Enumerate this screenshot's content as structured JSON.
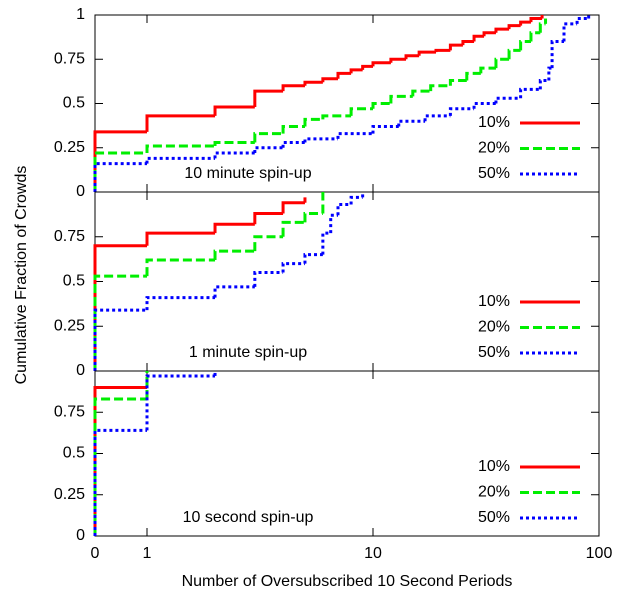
{
  "chart_data": [
    {
      "type": "line",
      "annotation": "10 minute spin-up",
      "ylim": [
        0,
        1
      ],
      "yticks": [
        0,
        0.25,
        0.5,
        0.75,
        1
      ],
      "xscale": "log",
      "xlim": [
        0,
        100
      ],
      "legend": "right",
      "series": [
        {
          "name": "10%",
          "color": "#ff0000",
          "dash": "solid",
          "x": [
            0,
            0,
            1,
            2,
            3,
            4,
            5,
            6,
            7,
            8,
            9,
            10,
            12,
            14,
            16,
            19,
            22,
            25,
            28,
            31,
            35,
            40,
            45,
            50,
            56
          ],
          "values": [
            0,
            0.34,
            0.43,
            0.48,
            0.57,
            0.6,
            0.62,
            0.64,
            0.67,
            0.69,
            0.71,
            0.73,
            0.75,
            0.77,
            0.79,
            0.8,
            0.83,
            0.85,
            0.88,
            0.9,
            0.92,
            0.94,
            0.96,
            0.98,
            1
          ]
        },
        {
          "name": "20%",
          "color": "#00ee00",
          "dash": "dashed",
          "x": [
            0,
            0,
            1,
            2,
            3,
            4,
            5,
            6,
            8,
            10,
            12,
            15,
            18,
            22,
            26,
            30,
            35,
            40,
            45,
            50,
            55,
            58
          ],
          "values": [
            0,
            0.22,
            0.26,
            0.28,
            0.33,
            0.37,
            0.41,
            0.43,
            0.47,
            0.5,
            0.54,
            0.57,
            0.6,
            0.63,
            0.67,
            0.7,
            0.75,
            0.8,
            0.85,
            0.9,
            0.95,
            0.98
          ]
        },
        {
          "name": "50%",
          "color": "#0000ff",
          "dash": "dotted",
          "x": [
            0,
            0,
            1,
            2,
            3,
            4,
            5,
            7,
            10,
            13,
            17,
            22,
            28,
            35,
            45,
            55,
            60,
            62,
            70,
            80,
            90
          ],
          "values": [
            0,
            0.16,
            0.19,
            0.22,
            0.25,
            0.28,
            0.3,
            0.33,
            0.37,
            0.4,
            0.43,
            0.47,
            0.5,
            0.53,
            0.58,
            0.63,
            0.7,
            0.85,
            0.95,
            0.98,
            1
          ]
        }
      ]
    },
    {
      "type": "line",
      "annotation": "1 minute spin-up",
      "ylabel": "Cumulative Fraction of Crowds",
      "ylim": [
        0,
        1
      ],
      "yticks": [
        0,
        0.25,
        0.5,
        0.75
      ],
      "xscale": "log",
      "xlim": [
        0,
        100
      ],
      "legend": "right",
      "series": [
        {
          "name": "10%",
          "color": "#ff0000",
          "dash": "solid",
          "x": [
            0,
            0,
            1,
            2,
            3,
            4,
            5
          ],
          "values": [
            0,
            0.7,
            0.77,
            0.82,
            0.88,
            0.94,
            0.97
          ]
        },
        {
          "name": "20%",
          "color": "#00ee00",
          "dash": "dashed",
          "x": [
            0,
            0,
            1,
            2,
            3,
            4,
            5,
            6
          ],
          "values": [
            0,
            0.53,
            0.62,
            0.67,
            0.75,
            0.83,
            0.88,
            1
          ]
        },
        {
          "name": "50%",
          "color": "#0000ff",
          "dash": "dotted",
          "x": [
            0,
            0,
            1,
            2,
            3,
            4,
            5,
            6,
            6.5,
            7,
            8,
            9
          ],
          "values": [
            0,
            0.34,
            0.41,
            0.47,
            0.55,
            0.6,
            0.65,
            0.77,
            0.87,
            0.93,
            0.97,
            1
          ]
        }
      ]
    },
    {
      "type": "line",
      "annotation": "10 second spin-up",
      "xlabel": "Number of Oversubscribed 10 Second Periods",
      "ylim": [
        0,
        1
      ],
      "yticks": [
        0,
        0.25,
        0.5,
        0.75
      ],
      "xscale": "log",
      "xlim": [
        0,
        100
      ],
      "xticks": [
        0,
        1,
        10,
        100
      ],
      "legend": "right",
      "series": [
        {
          "name": "10%",
          "color": "#ff0000",
          "dash": "solid",
          "x": [
            0,
            0,
            1
          ],
          "values": [
            0,
            0.9,
            0.9
          ]
        },
        {
          "name": "20%",
          "color": "#00ee00",
          "dash": "dashed",
          "x": [
            0,
            0,
            1
          ],
          "values": [
            0,
            0.83,
            1
          ]
        },
        {
          "name": "50%",
          "color": "#0000ff",
          "dash": "dotted",
          "x": [
            0,
            0,
            1,
            2
          ],
          "values": [
            0,
            0.64,
            0.97,
            1
          ]
        }
      ]
    }
  ]
}
